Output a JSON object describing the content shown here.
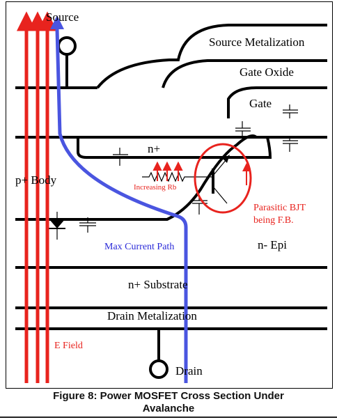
{
  "labels": {
    "source": "Source",
    "source_metal": "Source Metalization",
    "gate_oxide": "Gate Oxide",
    "gate": "Gate",
    "n_plus": "n+",
    "p_body": "p+ Body",
    "increasing_rb": "Increasing Rb",
    "parasitic_bjt_1": "Parasitic BJT",
    "parasitic_bjt_2": "being F.B.",
    "max_current": "Max Current Path",
    "n_epi": "n-  Epi",
    "n_substrate": "n+ Substrate",
    "drain_metal": "Drain Metalization",
    "e_field": "E Field",
    "drain": "Drain"
  },
  "caption": {
    "line1": "Figure 8: Power MOSFET Cross Section Under",
    "line2": "Avalanche"
  },
  "colors": {
    "e_field": "#e8231e",
    "current_path": "#4a55e0",
    "line": "#000000"
  }
}
